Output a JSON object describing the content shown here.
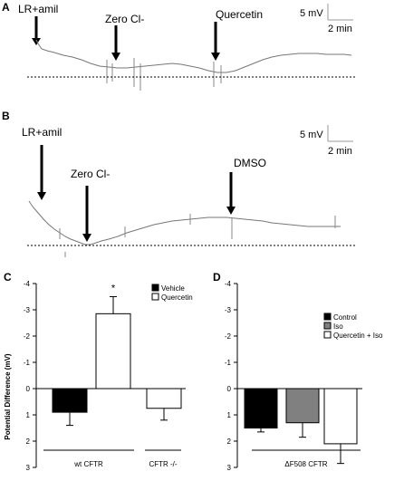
{
  "panels": {
    "A": {
      "letter": "A",
      "annotations": [
        "LR+amil",
        "Zero Cl-",
        "Quercetin"
      ],
      "scale_v": "5 mV",
      "scale_t": "2 min"
    },
    "B": {
      "letter": "B",
      "annotations": [
        "LR+amil",
        "Zero Cl-",
        "DMSO"
      ],
      "scale_v": "5 mV",
      "scale_t": "2 min"
    },
    "C": {
      "letter": "C",
      "star": "*"
    },
    "D": {
      "letter": "D"
    }
  },
  "chart_data": [
    {
      "panel": "C",
      "type": "bar",
      "ylabel": "Potential Difference (mV)",
      "ylim": [
        3,
        -4
      ],
      "yticks": [
        "-4",
        "-3",
        "-2",
        "-1",
        "0",
        "1",
        "2",
        "3"
      ],
      "series": [
        {
          "name": "Vehicle",
          "color": "#000000"
        },
        {
          "name": "Quercetin",
          "color": "#ffffff"
        }
      ],
      "bars": [
        {
          "series": "Vehicle",
          "group": "wt CFTR",
          "value": 0.9,
          "error": 0.5
        },
        {
          "series": "Quercetin",
          "group": "wt CFTR",
          "value": -2.85,
          "error": 0.65
        },
        {
          "series": "Quercetin",
          "group": "CFTR -/-",
          "value": 0.75,
          "error": 0.45
        }
      ],
      "groups": [
        "wt CFTR",
        "CFTR -/-"
      ],
      "significance": {
        "bar": 1,
        "mark": "*"
      }
    },
    {
      "panel": "D",
      "type": "bar",
      "ylabel": "",
      "ylim": [
        3,
        -4
      ],
      "yticks": [
        "-4",
        "-3",
        "-2",
        "-1",
        "0",
        "1",
        "2",
        "3"
      ],
      "series": [
        {
          "name": "Control",
          "color": "#000000"
        },
        {
          "name": "Iso",
          "color": "#808080"
        },
        {
          "name": "Quercetin + Iso",
          "color": "#ffffff"
        }
      ],
      "bars": [
        {
          "series": "Control",
          "value": 1.5,
          "error": 0.15
        },
        {
          "series": "Iso",
          "value": 1.3,
          "error": 0.55
        },
        {
          "series": "Quercetin + Iso",
          "value": 2.1,
          "error": 0.75
        }
      ],
      "groups": [
        "ΔF508 CFTR"
      ]
    }
  ]
}
